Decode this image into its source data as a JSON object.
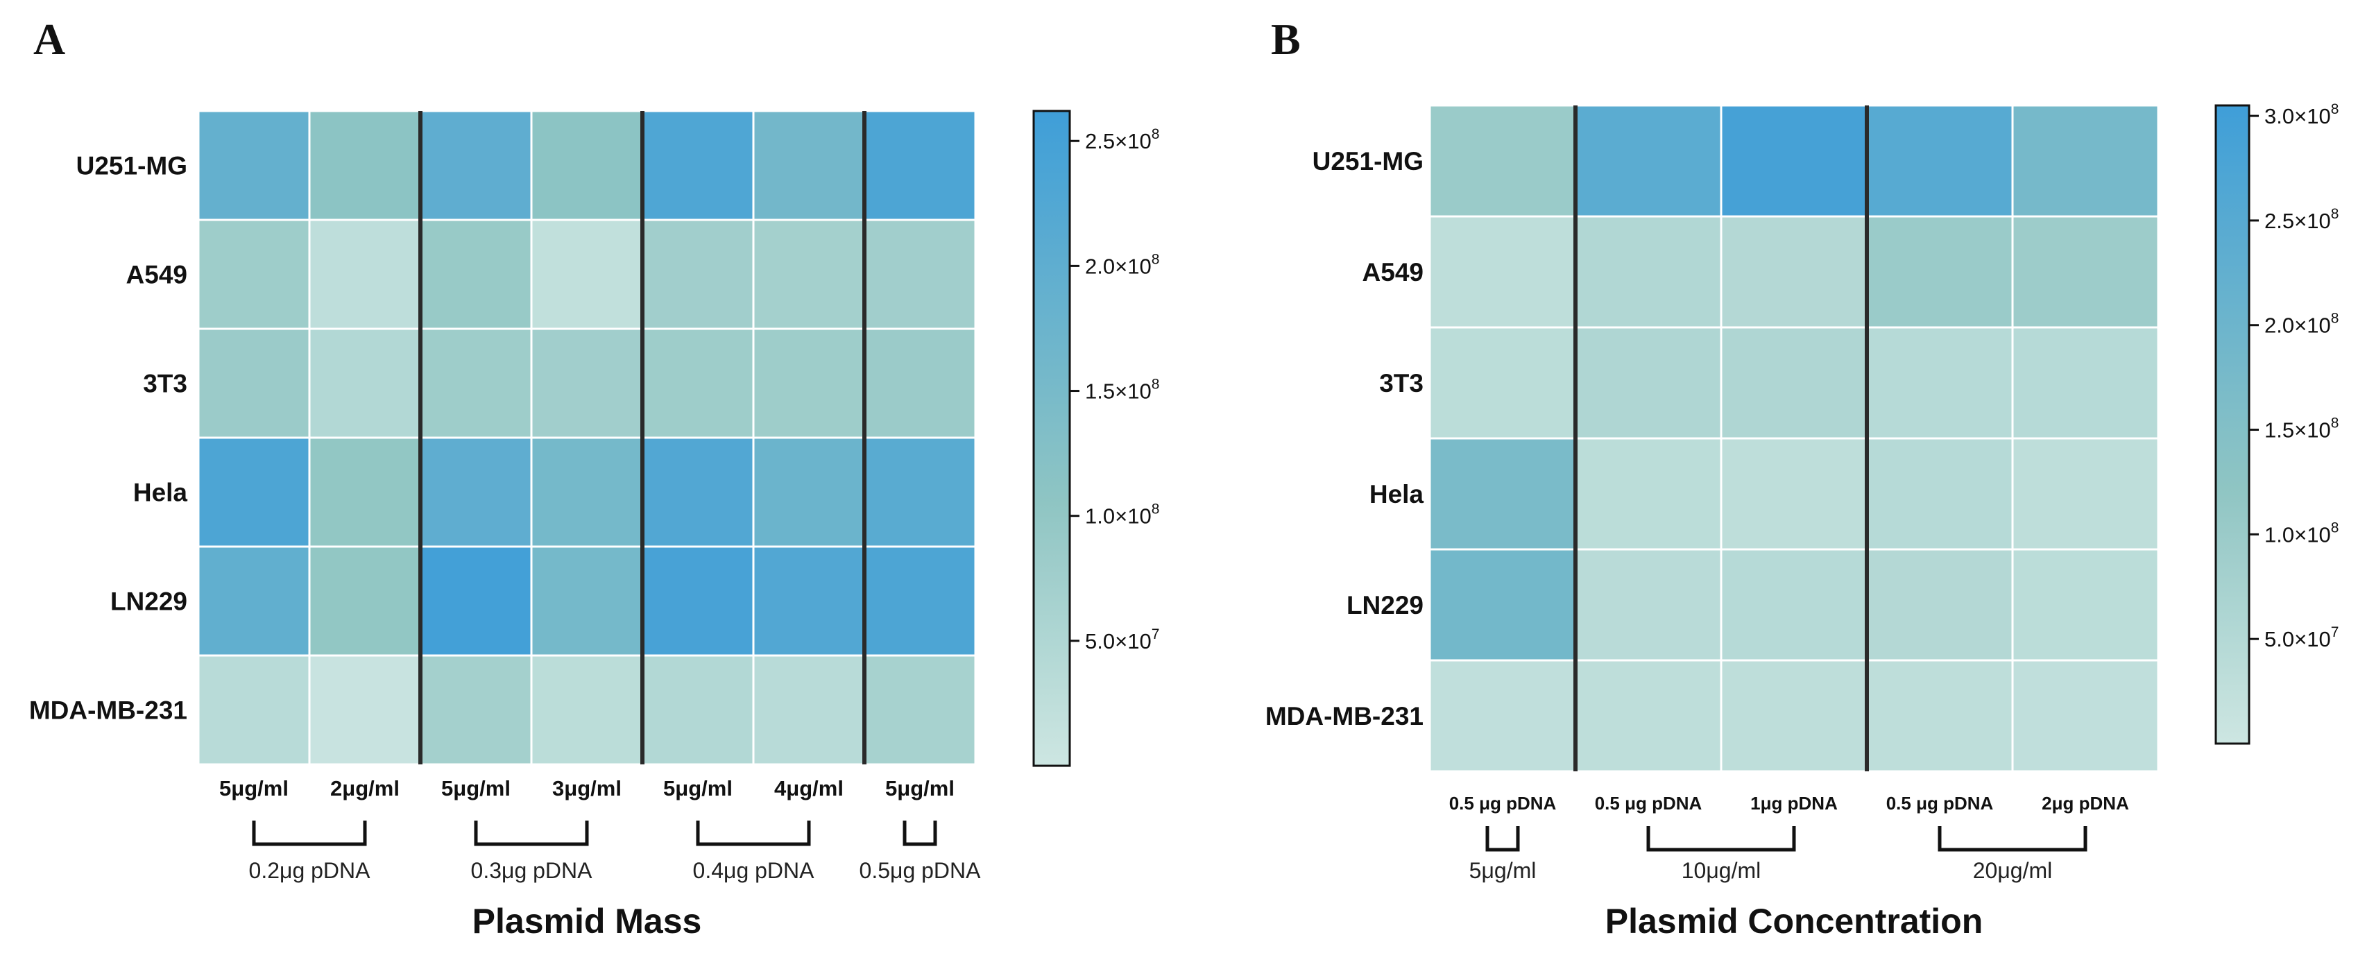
{
  "chart_data": [
    {
      "type": "heatmap",
      "panel": "A",
      "rows": [
        "U251-MG",
        "A549",
        "3T3",
        "Hela",
        "LN229",
        "MDA-MB-231"
      ],
      "columns": [
        "5μg/ml",
        "2μg/ml",
        "5μg/ml",
        "3μg/ml",
        "5μg/ml",
        "4μg/ml",
        "5μg/ml"
      ],
      "groups": [
        {
          "label": "0.2μg pDNA",
          "span": 2
        },
        {
          "label": "0.3μg pDNA",
          "span": 2
        },
        {
          "label": "0.4μg pDNA",
          "span": 2
        },
        {
          "label": "0.5μg pDNA",
          "span": 1
        }
      ],
      "values": [
        [
          190000000,
          110000000,
          200000000,
          110000000,
          230000000,
          160000000,
          235000000
        ],
        [
          80000000,
          25000000,
          90000000,
          20000000,
          75000000,
          70000000,
          75000000
        ],
        [
          85000000,
          45000000,
          80000000,
          75000000,
          80000000,
          80000000,
          85000000
        ],
        [
          235000000,
          100000000,
          200000000,
          155000000,
          225000000,
          175000000,
          210000000
        ],
        [
          195000000,
          100000000,
          255000000,
          155000000,
          245000000,
          225000000,
          235000000
        ],
        [
          35000000,
          8000000,
          70000000,
          30000000,
          45000000,
          35000000,
          65000000
        ]
      ],
      "xlabel": "Plasmid Mass",
      "colorbar": {
        "min": 0,
        "max": 262000000,
        "ticks": [
          "5.0×10^7",
          "1.0×10^8",
          "1.5×10^8",
          "2.0×10^8",
          "2.5×10^8"
        ],
        "tick_values": [
          50000000,
          100000000,
          150000000,
          200000000,
          250000000
        ]
      }
    },
    {
      "type": "heatmap",
      "panel": "B",
      "rows": [
        "U251-MG",
        "A549",
        "3T3",
        "Hela",
        "LN229",
        "MDA-MB-231"
      ],
      "columns": [
        "0.5 μg pDNA",
        "0.5 μg pDNA",
        "1μg pDNA",
        "0.5 μg pDNA",
        "2μg pDNA"
      ],
      "groups": [
        {
          "label": "5μg/ml",
          "span": 1
        },
        {
          "label": "10μg/ml",
          "span": 2
        },
        {
          "label": "20μg/ml",
          "span": 2
        }
      ],
      "values": [
        [
          100000000,
          240000000,
          290000000,
          250000000,
          180000000
        ],
        [
          30000000,
          55000000,
          50000000,
          100000000,
          95000000
        ],
        [
          35000000,
          60000000,
          60000000,
          45000000,
          45000000
        ],
        [
          170000000,
          35000000,
          30000000,
          45000000,
          30000000
        ],
        [
          185000000,
          40000000,
          45000000,
          50000000,
          35000000
        ],
        [
          25000000,
          30000000,
          30000000,
          30000000,
          25000000
        ]
      ],
      "xlabel": "Plasmid Concentration",
      "colorbar": {
        "min": 0,
        "max": 305000000,
        "ticks": [
          "5.0×10^7",
          "1.0×10^8",
          "1.5×10^8",
          "2.0×10^8",
          "2.5×10^8",
          "3.0×10^8"
        ],
        "tick_values": [
          50000000,
          100000000,
          150000000,
          200000000,
          250000000,
          300000000
        ]
      }
    }
  ],
  "colors": {
    "low": "#cde6e2",
    "mid": "#8fc5c3",
    "high": "#3f9ed8"
  }
}
